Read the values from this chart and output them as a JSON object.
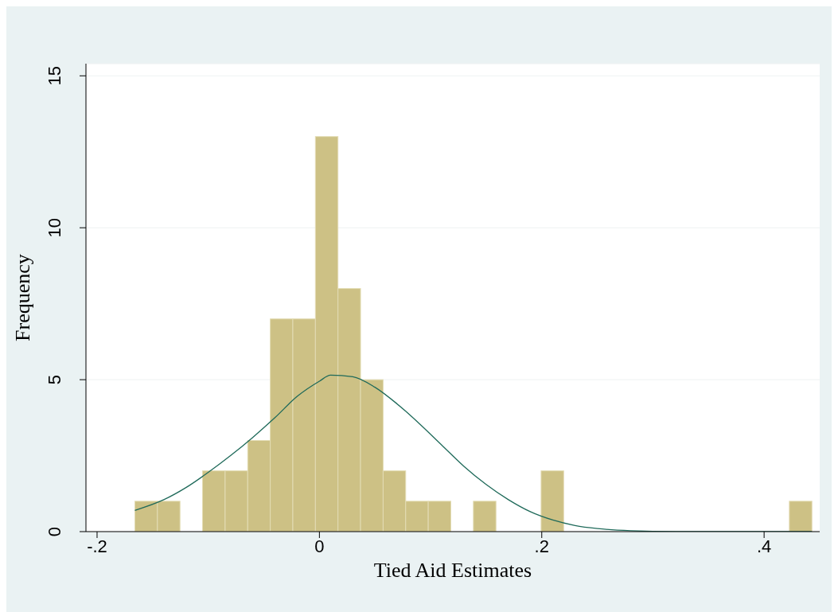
{
  "chart_data": {
    "type": "histogram",
    "xlabel": "Tied Aid Estimates",
    "ylabel": "Frequency",
    "bins": [
      -0.166,
      -0.1457,
      -0.1254,
      -0.1051,
      -0.0848,
      -0.0645,
      -0.0442,
      -0.0239,
      -0.0036,
      0.0167,
      0.037,
      0.0573,
      0.0776,
      0.0979,
      0.1182,
      0.1385,
      0.1588,
      0.1791,
      0.1994,
      0.2197,
      0.24,
      0.2603,
      0.2806,
      0.3009,
      0.3212,
      0.3415,
      0.3618,
      0.3821,
      0.4024,
      0.4227,
      0.443
    ],
    "values": [
      1,
      1,
      0,
      2,
      2,
      3,
      7,
      7,
      13,
      8,
      5,
      2,
      1,
      1,
      0,
      1,
      0,
      0,
      2,
      0,
      0,
      0,
      0,
      0,
      0,
      0,
      0,
      0,
      0,
      1
    ],
    "color": "#cdc185",
    "series": [
      {
        "type": "line",
        "color": "#1f6a5a",
        "x": [
          -0.166,
          -0.14,
          -0.12,
          -0.1,
          -0.08,
          -0.06,
          -0.04,
          -0.02,
          0,
          0.01,
          0.03,
          0.05,
          0.07,
          0.09,
          0.11,
          0.13,
          0.15,
          0.17,
          0.19,
          0.21,
          0.23,
          0.25,
          0.28,
          0.32,
          0.443
        ],
        "values": [
          0.7,
          1.05,
          1.45,
          1.95,
          2.5,
          3.1,
          3.75,
          4.45,
          4.95,
          5.15,
          5.1,
          4.75,
          4.2,
          3.55,
          2.85,
          2.15,
          1.55,
          1.05,
          0.65,
          0.38,
          0.2,
          0.1,
          0.03,
          0,
          0
        ]
      }
    ],
    "xlim": [
      -0.21,
      0.45
    ],
    "xticks": [
      {
        "value": -0.2,
        "label": "-.2"
      },
      0,
      {
        "value": 0.2,
        "label": ".2"
      },
      {
        "value": 0.4,
        "label": ".4"
      }
    ],
    "ylim": [
      0,
      15.4
    ],
    "yticks": [
      0,
      5,
      10,
      15
    ],
    "grid": "y"
  }
}
